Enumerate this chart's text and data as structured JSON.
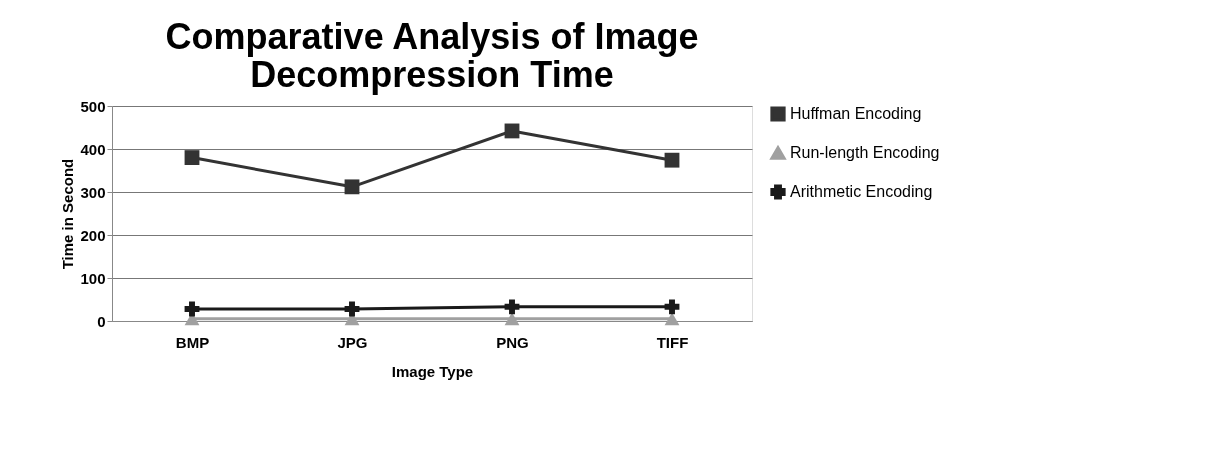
{
  "chart_data": {
    "type": "line",
    "title": "Comparative Analysis of Image Decompression Time",
    "xlabel": "Image Type",
    "ylabel": "Time in Second",
    "categories": [
      "BMP",
      "JPG",
      "PNG",
      "TIFF"
    ],
    "series": [
      {
        "name": "Huffman Encoding",
        "color": "#333333",
        "marker": "square",
        "values": [
          380,
          312,
          442,
          374
        ]
      },
      {
        "name": "Run-length Encoding",
        "color": "#a0a0a0",
        "marker": "triangle",
        "values": [
          5,
          5,
          5,
          5
        ]
      },
      {
        "name": "Arithmetic Encoding",
        "color": "#1a1a1a",
        "marker": "cross",
        "values": [
          28,
          28,
          33,
          33
        ]
      }
    ],
    "ylim": [
      0,
      500
    ],
    "yticks": [
      0,
      100,
      200,
      300,
      400,
      500
    ],
    "grid": "y",
    "legend": "right"
  }
}
